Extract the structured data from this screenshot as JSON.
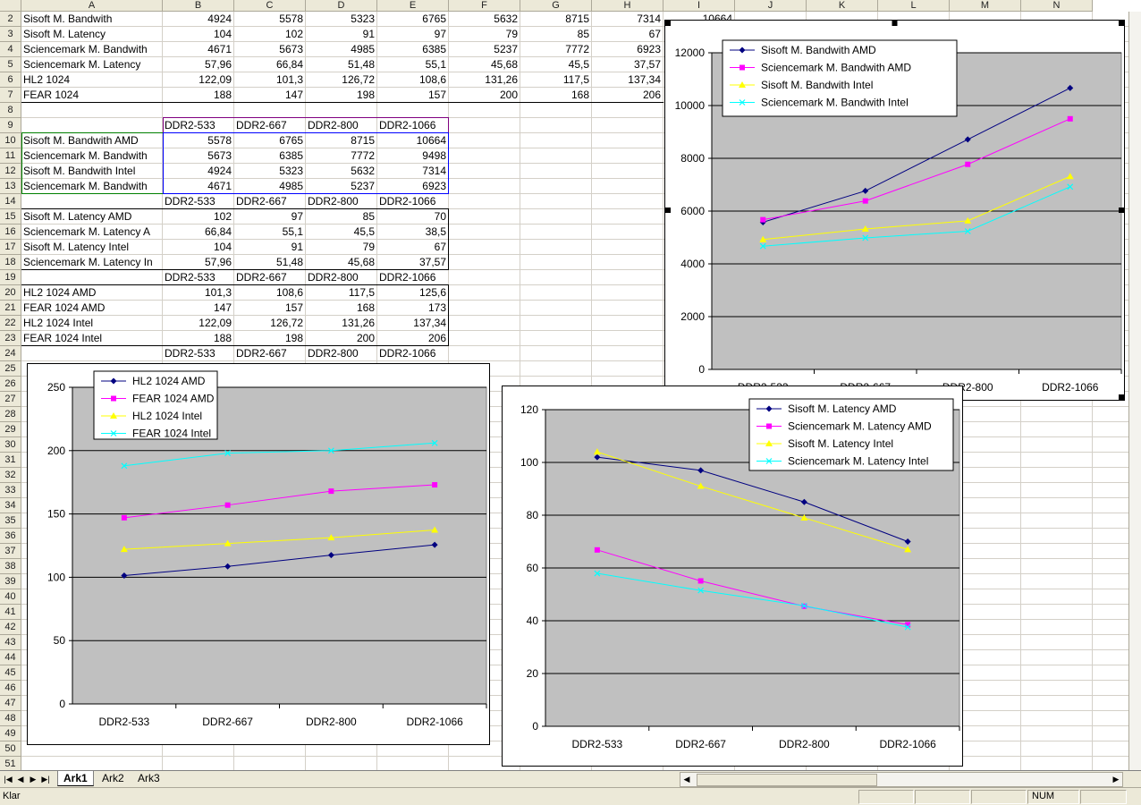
{
  "columns": [
    "A",
    "B",
    "C",
    "D",
    "E",
    "F",
    "G",
    "H",
    "I",
    "J",
    "K",
    "L",
    "M",
    "N"
  ],
  "rows": [
    {
      "n": "2",
      "a": "Sisoft M. Bandwith",
      "v": [
        "4924",
        "5578",
        "5323",
        "6765",
        "5632",
        "8715",
        "7314",
        "10664"
      ]
    },
    {
      "n": "3",
      "a": "Sisoft M. Latency",
      "v": [
        "104",
        "102",
        "91",
        "97",
        "79",
        "85",
        "67",
        ""
      ]
    },
    {
      "n": "4",
      "a": "Sciencemark M. Bandwith",
      "v": [
        "4671",
        "5673",
        "4985",
        "6385",
        "5237",
        "7772",
        "6923",
        ""
      ]
    },
    {
      "n": "5",
      "a": "Sciencemark M. Latency",
      "v": [
        "57,96",
        "66,84",
        "51,48",
        "55,1",
        "45,68",
        "45,5",
        "37,57",
        ""
      ]
    },
    {
      "n": "6",
      "a": "HL2 1024",
      "v": [
        "122,09",
        "101,3",
        "126,72",
        "108,6",
        "131,26",
        "117,5",
        "137,34",
        ""
      ]
    },
    {
      "n": "7",
      "a": "FEAR 1024",
      "v": [
        "188",
        "147",
        "198",
        "157",
        "200",
        "168",
        "206",
        ""
      ]
    },
    {
      "n": "8",
      "a": "",
      "v": [
        "",
        "",
        "",
        "",
        "",
        "",
        "",
        ""
      ]
    },
    {
      "n": "9",
      "a": "",
      "v": [
        "DDR2-533",
        "DDR2-667",
        "DDR2-800",
        "DDR2-1066",
        "",
        "",
        "",
        ""
      ]
    },
    {
      "n": "10",
      "a": "Sisoft M. Bandwith AMD",
      "v": [
        "5578",
        "6765",
        "8715",
        "10664",
        "",
        "",
        "",
        ""
      ]
    },
    {
      "n": "11",
      "a": "Sciencemark M. Bandwith",
      "v": [
        "5673",
        "6385",
        "7772",
        "9498",
        "",
        "",
        "",
        ""
      ]
    },
    {
      "n": "12",
      "a": "Sisoft M. Bandwith Intel",
      "v": [
        "4924",
        "5323",
        "5632",
        "7314",
        "",
        "",
        "",
        ""
      ]
    },
    {
      "n": "13",
      "a": "Sciencemark M. Bandwith",
      "v": [
        "4671",
        "4985",
        "5237",
        "6923",
        "",
        "",
        "",
        ""
      ]
    },
    {
      "n": "14",
      "a": "",
      "v": [
        "DDR2-533",
        "DDR2-667",
        "DDR2-800",
        "DDR2-1066",
        "",
        "",
        "",
        ""
      ]
    },
    {
      "n": "15",
      "a": "Sisoft M. Latency AMD",
      "v": [
        "102",
        "97",
        "85",
        "70",
        "",
        "",
        "",
        ""
      ]
    },
    {
      "n": "16",
      "a": "Sciencemark M. Latency A",
      "v": [
        "66,84",
        "55,1",
        "45,5",
        "38,5",
        "",
        "",
        "",
        ""
      ]
    },
    {
      "n": "17",
      "a": "Sisoft M. Latency Intel",
      "v": [
        "104",
        "91",
        "79",
        "67",
        "",
        "",
        "",
        ""
      ]
    },
    {
      "n": "18",
      "a": "Sciencemark M. Latency In",
      "v": [
        "57,96",
        "51,48",
        "45,68",
        "37,57",
        "",
        "",
        "",
        ""
      ]
    },
    {
      "n": "19",
      "a": "",
      "v": [
        "DDR2-533",
        "DDR2-667",
        "DDR2-800",
        "DDR2-1066",
        "",
        "",
        "",
        ""
      ]
    },
    {
      "n": "20",
      "a": "HL2 1024 AMD",
      "v": [
        "101,3",
        "108,6",
        "117,5",
        "125,6",
        "",
        "",
        "",
        ""
      ]
    },
    {
      "n": "21",
      "a": "FEAR 1024 AMD",
      "v": [
        "147",
        "157",
        "168",
        "173",
        "",
        "",
        "",
        ""
      ]
    },
    {
      "n": "22",
      "a": "HL2 1024 Intel",
      "v": [
        "122,09",
        "126,72",
        "131,26",
        "137,34",
        "",
        "",
        "",
        ""
      ]
    },
    {
      "n": "23",
      "a": "FEAR 1024 Intel",
      "v": [
        "188",
        "198",
        "200",
        "206",
        "",
        "",
        "",
        ""
      ]
    },
    {
      "n": "24",
      "a": "",
      "v": [
        "DDR2-533",
        "DDR2-667",
        "DDR2-800",
        "DDR2-1066",
        "",
        "",
        "",
        ""
      ]
    },
    {
      "n": "25",
      "a": "",
      "v": []
    },
    {
      "n": "26",
      "a": "",
      "v": []
    },
    {
      "n": "27",
      "a": "",
      "v": []
    },
    {
      "n": "28",
      "a": "",
      "v": []
    },
    {
      "n": "29",
      "a": "",
      "v": []
    },
    {
      "n": "30",
      "a": "",
      "v": []
    },
    {
      "n": "31",
      "a": "",
      "v": []
    },
    {
      "n": "32",
      "a": "",
      "v": []
    },
    {
      "n": "33",
      "a": "",
      "v": []
    },
    {
      "n": "34",
      "a": "",
      "v": []
    },
    {
      "n": "35",
      "a": "",
      "v": []
    },
    {
      "n": "36",
      "a": "",
      "v": []
    },
    {
      "n": "37",
      "a": "",
      "v": []
    },
    {
      "n": "38",
      "a": "",
      "v": []
    },
    {
      "n": "39",
      "a": "",
      "v": []
    },
    {
      "n": "40",
      "a": "",
      "v": []
    },
    {
      "n": "41",
      "a": "",
      "v": []
    },
    {
      "n": "42",
      "a": "",
      "v": []
    },
    {
      "n": "43",
      "a": "",
      "v": []
    },
    {
      "n": "44",
      "a": "",
      "v": []
    },
    {
      "n": "45",
      "a": "",
      "v": []
    },
    {
      "n": "46",
      "a": "",
      "v": []
    },
    {
      "n": "47",
      "a": "",
      "v": []
    },
    {
      "n": "48",
      "a": "",
      "v": []
    },
    {
      "n": "49",
      "a": "",
      "v": []
    },
    {
      "n": "50",
      "a": "",
      "v": []
    },
    {
      "n": "51",
      "a": "",
      "v": []
    }
  ],
  "sheet_tabs": [
    "Ark1",
    "Ark2",
    "Ark3"
  ],
  "active_tab": "Ark1",
  "status": {
    "ready": "Klar",
    "num": "NUM"
  },
  "chart_data": [
    {
      "type": "line",
      "categories": [
        "DDR2-533",
        "DDR2-667",
        "DDR2-800",
        "DDR2-1066"
      ],
      "ylim": [
        0,
        12000
      ],
      "yticks": [
        0,
        2000,
        4000,
        6000,
        8000,
        10000,
        12000
      ],
      "grid": true,
      "legend": "top-left",
      "series": [
        {
          "name": "Sisoft M. Bandwith AMD",
          "values": [
            5578,
            6765,
            8715,
            10664
          ],
          "color": "#000080",
          "marker": "diamond"
        },
        {
          "name": "Sciencemark M. Bandwith AMD",
          "values": [
            5673,
            6385,
            7772,
            9498
          ],
          "color": "#ff00ff",
          "marker": "square"
        },
        {
          "name": "Sisoft M. Bandwith Intel",
          "values": [
            4924,
            5323,
            5632,
            7314
          ],
          "color": "#ffff00",
          "marker": "triangle"
        },
        {
          "name": "Sciencemark M. Bandwith Intel",
          "values": [
            4671,
            4985,
            5237,
            6923
          ],
          "color": "#00ffff",
          "marker": "x"
        }
      ]
    },
    {
      "type": "line",
      "categories": [
        "DDR2-533",
        "DDR2-667",
        "DDR2-800",
        "DDR2-1066"
      ],
      "ylim": [
        0,
        250
      ],
      "yticks": [
        0,
        50,
        100,
        150,
        200,
        250
      ],
      "grid": true,
      "legend": "top-left",
      "series": [
        {
          "name": "HL2 1024 AMD",
          "values": [
            101.3,
            108.6,
            117.5,
            125.6
          ],
          "color": "#000080",
          "marker": "diamond"
        },
        {
          "name": "FEAR 1024 AMD",
          "values": [
            147,
            157,
            168,
            173
          ],
          "color": "#ff00ff",
          "marker": "square"
        },
        {
          "name": "HL2 1024 Intel",
          "values": [
            122.09,
            126.72,
            131.26,
            137.34
          ],
          "color": "#ffff00",
          "marker": "triangle"
        },
        {
          "name": "FEAR 1024 Intel",
          "values": [
            188,
            198,
            200,
            206
          ],
          "color": "#00ffff",
          "marker": "x"
        }
      ]
    },
    {
      "type": "line",
      "categories": [
        "DDR2-533",
        "DDR2-667",
        "DDR2-800",
        "DDR2-1066"
      ],
      "ylim": [
        0,
        120
      ],
      "yticks": [
        0,
        20,
        40,
        60,
        80,
        100,
        120
      ],
      "grid": true,
      "legend": "top-right",
      "series": [
        {
          "name": "Sisoft M. Latency AMD",
          "values": [
            102,
            97,
            85,
            70
          ],
          "color": "#000080",
          "marker": "diamond"
        },
        {
          "name": "Sciencemark M. Latency AMD",
          "values": [
            66.84,
            55.1,
            45.5,
            38.5
          ],
          "color": "#ff00ff",
          "marker": "square"
        },
        {
          "name": "Sisoft M. Latency Intel",
          "values": [
            104,
            91,
            79,
            67
          ],
          "color": "#ffff00",
          "marker": "triangle"
        },
        {
          "name": "Sciencemark M. Latency Intel",
          "values": [
            57.96,
            51.48,
            45.68,
            37.57
          ],
          "color": "#00ffff",
          "marker": "x"
        }
      ]
    }
  ]
}
